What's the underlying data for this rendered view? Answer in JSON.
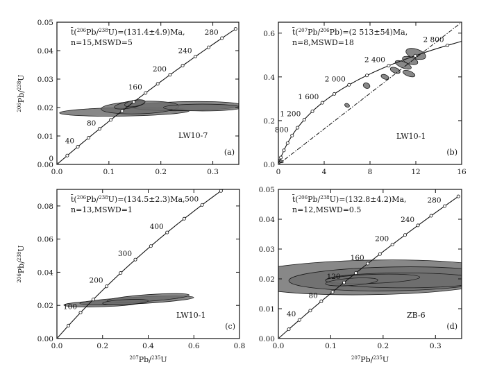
{
  "chart_data": [
    {
      "panel": "a",
      "type": "scatter",
      "xlabel": "",
      "ylabel": "206Pb/238U",
      "xlim": [
        0,
        0.35
      ],
      "ylim": [
        0,
        0.05
      ],
      "x_ticks": [
        0.0,
        0.1,
        0.2,
        0.3
      ],
      "x_tick_labels": [
        "0.0",
        "0.1",
        "0.2",
        "0.3"
      ],
      "y_ticks": [
        0.0,
        0.01,
        0.02,
        0.03,
        0.04,
        0.05
      ],
      "y_tick_labels": [
        "0.00",
        "0.01",
        "0.02",
        "0.03",
        "0.04",
        "0.05"
      ],
      "annotation": "t̄(206Pb/238U)=(131.4±4.9)Ma, n=15,MSWD=5",
      "sample": "LW10-7",
      "panel_label": "(a)",
      "concordia_labels": [
        {
          "label": "0",
          "age": 0
        },
        {
          "label": "40",
          "age": 40
        },
        {
          "label": "80",
          "age": 80
        },
        {
          "label": "160",
          "age": 160
        },
        {
          "label": "200",
          "age": 200
        },
        {
          "label": "240",
          "age": 240
        },
        {
          "label": "280",
          "age": 280
        }
      ],
      "concordia_marker_step_ma": 20,
      "concordia_max_age_ma": 300,
      "ellipses": [
        {
          "x": 0.13,
          "y": 0.0185,
          "rx": 0.125,
          "ry": 0.0015,
          "tilt_deg": 1
        },
        {
          "x": 0.25,
          "y": 0.0205,
          "rx": 0.105,
          "ry": 0.0016,
          "tilt_deg": 1
        },
        {
          "x": 0.16,
          "y": 0.02,
          "rx": 0.075,
          "ry": 0.0022,
          "tilt_deg": 2
        },
        {
          "x": 0.28,
          "y": 0.02,
          "rx": 0.075,
          "ry": 0.0012,
          "tilt_deg": 0
        },
        {
          "x": 0.14,
          "y": 0.021,
          "rx": 0.03,
          "ry": 0.0012,
          "tilt_deg": 10
        },
        {
          "x": 0.15,
          "y": 0.0215,
          "rx": 0.02,
          "ry": 0.0011,
          "tilt_deg": 10
        }
      ]
    },
    {
      "panel": "b",
      "type": "scatter",
      "xlabel": "",
      "ylabel": "",
      "xlim": [
        0,
        16
      ],
      "ylim": [
        0,
        0.65
      ],
      "x_ticks": [
        0,
        4,
        8,
        12,
        16
      ],
      "x_tick_labels": [
        "0",
        "4",
        "8",
        "12",
        "16"
      ],
      "y_ticks": [
        0.0,
        0.2,
        0.4,
        0.6
      ],
      "y_tick_labels": [
        "0.0",
        "0.2",
        "0.4",
        "0.6"
      ],
      "annotation": "t̄(207Pb/206Pb)=(2 513±54)Ma, n=8,MSWD=18",
      "sample": "LW10-1",
      "panel_label": "(b)",
      "concordia_labels": [
        {
          "label": "800",
          "age": 800
        },
        {
          "label": "1 200",
          "age": 1200
        },
        {
          "label": "1 600",
          "age": 1600
        },
        {
          "label": "2 000",
          "age": 2000
        },
        {
          "label": "2 400",
          "age": 2400
        },
        {
          "label": "2 800",
          "age": 2800
        }
      ],
      "concordia_marker_step_ma": 200,
      "concordia_max_age_ma": 3000,
      "discordia": {
        "intercept_y": 0.0,
        "slope": 0.0406,
        "x_end": 16
      },
      "ellipses": [
        {
          "x": 12.0,
          "y": 0.505,
          "rx": 0.9,
          "ry": 0.022,
          "tilt_deg": -18
        },
        {
          "x": 11.5,
          "y": 0.475,
          "rx": 0.7,
          "ry": 0.016,
          "tilt_deg": -18
        },
        {
          "x": 10.9,
          "y": 0.455,
          "rx": 0.75,
          "ry": 0.014,
          "tilt_deg": -22
        },
        {
          "x": 10.2,
          "y": 0.43,
          "rx": 0.45,
          "ry": 0.012,
          "tilt_deg": -22
        },
        {
          "x": 9.3,
          "y": 0.4,
          "rx": 0.35,
          "ry": 0.01,
          "tilt_deg": -22
        },
        {
          "x": 7.7,
          "y": 0.36,
          "rx": 0.3,
          "ry": 0.012,
          "tilt_deg": -25
        },
        {
          "x": 11.4,
          "y": 0.415,
          "rx": 0.55,
          "ry": 0.012,
          "tilt_deg": -20
        },
        {
          "x": 6.0,
          "y": 0.27,
          "rx": 0.22,
          "ry": 0.008,
          "tilt_deg": -25
        },
        {
          "x": 0.2,
          "y": 0.015,
          "rx": 0.25,
          "ry": 0.006,
          "tilt_deg": -25
        }
      ]
    },
    {
      "panel": "c",
      "type": "scatter",
      "xlabel": "207Pb/235U",
      "ylabel": "206Pb/238U",
      "xlim": [
        0,
        0.8
      ],
      "ylim": [
        0,
        0.09
      ],
      "x_ticks": [
        0.0,
        0.2,
        0.4,
        0.6,
        0.8
      ],
      "x_tick_labels": [
        "0.0",
        "0.2",
        "0.4",
        "0.6",
        "0.8"
      ],
      "y_ticks": [
        0.0,
        0.02,
        0.04,
        0.06,
        0.08
      ],
      "y_tick_labels": [
        "0.00",
        "0.02",
        "0.04",
        "0.06",
        "0.08"
      ],
      "annotation": "t̄(206Pb/238U)=(134.5±2.3)Ma, n=13,MSWD=1",
      "sample": "LW10-1",
      "panel_label": "(c)",
      "concordia_labels": [
        {
          "label": "100",
          "age": 100
        },
        {
          "label": "200",
          "age": 200
        },
        {
          "label": "300",
          "age": 300
        },
        {
          "label": "400",
          "age": 400
        },
        {
          "label": "500",
          "age": 500
        }
      ],
      "concordia_marker_step_ma": 50,
      "concordia_max_age_ma": 560,
      "ellipses": [
        {
          "x": 0.2,
          "y": 0.021,
          "rx": 0.17,
          "ry": 0.0018,
          "tilt_deg": 2
        },
        {
          "x": 0.35,
          "y": 0.023,
          "rx": 0.25,
          "ry": 0.002,
          "tilt_deg": 3
        },
        {
          "x": 0.4,
          "y": 0.0245,
          "rx": 0.18,
          "ry": 0.002,
          "tilt_deg": 4
        },
        {
          "x": 0.3,
          "y": 0.022,
          "rx": 0.1,
          "ry": 0.0015,
          "tilt_deg": 3
        }
      ]
    },
    {
      "panel": "d",
      "type": "scatter",
      "xlabel": "207Pb/235U",
      "ylabel": "",
      "xlim": [
        0,
        0.35
      ],
      "ylim": [
        0,
        0.05
      ],
      "x_ticks": [
        0.0,
        0.1,
        0.2,
        0.3
      ],
      "x_tick_labels": [
        "0.0",
        "0.1",
        "0.2",
        "0.3"
      ],
      "y_ticks": [
        0.0,
        0.01,
        0.02,
        0.03,
        0.04,
        0.05
      ],
      "y_tick_labels": [
        "0.00",
        "0.01",
        "0.02",
        "0.03",
        "0.04",
        "0.05"
      ],
      "annotation": "t̄(206Pb/238U)=(132.8±4.2)Ma, n=12,MSWD=0.5",
      "sample": "ZB-6",
      "panel_label": "(d)",
      "concordia_labels": [
        {
          "label": "40",
          "age": 40
        },
        {
          "label": "80",
          "age": 80
        },
        {
          "label": "120",
          "age": 120
        },
        {
          "label": "160",
          "age": 160
        },
        {
          "label": "200",
          "age": 200
        },
        {
          "label": "240",
          "age": 240
        },
        {
          "label": "280",
          "age": 280
        }
      ],
      "concordia_marker_step_ma": 20,
      "concordia_max_age_ma": 300,
      "ellipses": [
        {
          "x": 0.18,
          "y": 0.0205,
          "rx": 0.26,
          "ry": 0.0058,
          "tilt_deg": 1
        },
        {
          "x": 0.22,
          "y": 0.02,
          "rx": 0.2,
          "ry": 0.004,
          "tilt_deg": 1
        },
        {
          "x": 0.24,
          "y": 0.0195,
          "rx": 0.15,
          "ry": 0.0025,
          "tilt_deg": 0
        },
        {
          "x": 0.18,
          "y": 0.02,
          "rx": 0.09,
          "ry": 0.0015,
          "tilt_deg": 2
        },
        {
          "x": 0.14,
          "y": 0.019,
          "rx": 0.05,
          "ry": 0.0012,
          "tilt_deg": 4
        }
      ]
    }
  ]
}
